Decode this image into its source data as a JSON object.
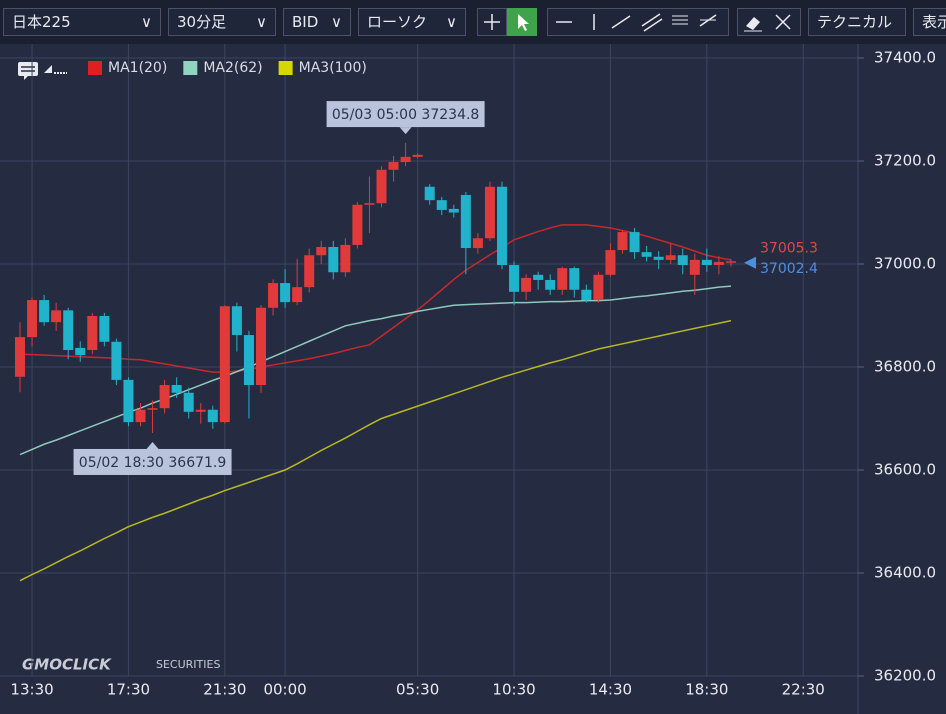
{
  "toolbar": {
    "symbol": "日本225",
    "timeframe": "30分足",
    "side": "BID",
    "chart_style": "ローソク",
    "technical": "テクニカル",
    "display": "表示"
  },
  "watermark": {
    "brand": "GMOCLICK",
    "sub": "SECURITIES"
  },
  "chart_data": {
    "type": "candlestick",
    "up_color": "#e03a3a",
    "down_color": "#22b3cc",
    "categories": [
      null,
      "13:30",
      null,
      null,
      null,
      null,
      null,
      null,
      null,
      "17:30",
      null,
      null,
      null,
      null,
      null,
      null,
      null,
      "21:30",
      null,
      null,
      null,
      null,
      "00:00",
      null,
      null,
      null,
      null,
      null,
      null,
      null,
      null,
      null,
      null,
      "05:30",
      null,
      null,
      null,
      null,
      null,
      null,
      null,
      "10:30",
      null,
      null,
      null,
      null,
      null,
      null,
      null,
      "14:30",
      null,
      null,
      null,
      null,
      null,
      null,
      null,
      "18:30",
      null,
      null,
      null,
      null,
      null,
      null,
      null,
      "22:30"
    ],
    "open": [
      36781,
      36858,
      36930,
      36887,
      36910,
      36837,
      36833,
      36899,
      36849,
      36775,
      36693,
      36717,
      36720,
      36765,
      36750,
      36713,
      36717,
      36693,
      36918,
      36862,
      36765,
      36915,
      36963,
      36926,
      36955,
      37017,
      37033,
      36984,
      37037,
      37115,
      37118,
      37183,
      37198,
      37208,
      37150,
      37124,
      37107,
      37134,
      37031,
      37050,
      37150,
      36998,
      36946,
      36979,
      36969,
      36950,
      36992,
      36950,
      36930,
      36979,
      37027,
      37062,
      37023,
      37014,
      37008,
      37017,
      36979,
      37008,
      36998,
      37004,
      null,
      null,
      null,
      null,
      null,
      null
    ],
    "high": [
      36887,
      36935,
      36940,
      36925,
      36915,
      36850,
      36905,
      36905,
      36855,
      36780,
      36730,
      36735,
      36775,
      36780,
      36760,
      36730,
      36725,
      36920,
      36925,
      36870,
      36920,
      36970,
      36990,
      37010,
      37030,
      37045,
      37045,
      37050,
      37120,
      37170,
      37190,
      37210,
      37234.8,
      37215,
      37155,
      37130,
      37115,
      37140,
      37060,
      37160,
      37160,
      37005,
      36980,
      36985,
      36980,
      36995,
      36995,
      36960,
      36985,
      37040,
      37065,
      37070,
      37035,
      37025,
      37040,
      37030,
      37020,
      37030,
      37015,
      37010,
      null,
      null,
      null,
      null,
      null,
      null
    ],
    "low": [
      36751,
      36840,
      36880,
      36870,
      36815,
      36810,
      36825,
      36840,
      36765,
      36685,
      36685,
      36671.9,
      36710,
      36740,
      36700,
      36690,
      36680,
      36690,
      36830,
      36700,
      36750,
      36900,
      36915,
      36920,
      36945,
      37000,
      36970,
      36975,
      37030,
      37060,
      37110,
      37160,
      37190,
      37205,
      37115,
      37095,
      37090,
      36980,
      37020,
      37045,
      36990,
      36920,
      36930,
      36950,
      36940,
      36940,
      36935,
      36925,
      36925,
      36975,
      37020,
      37010,
      37005,
      36990,
      37000,
      36980,
      36940,
      36985,
      36980,
      36995,
      null,
      null,
      null,
      null,
      null,
      null
    ],
    "close": [
      36858,
      36930,
      36887,
      36910,
      36833,
      36823,
      36899,
      36849,
      36775,
      36693,
      36717,
      36720,
      36765,
      36750,
      36713,
      36717,
      36693,
      36918,
      36862,
      36765,
      36915,
      36963,
      36926,
      36955,
      37017,
      37033,
      36984,
      37037,
      37115,
      37118,
      37183,
      37198,
      37208,
      37212,
      37124,
      37105,
      37100,
      37031,
      37050,
      37150,
      36998,
      36946,
      36973,
      36969,
      36950,
      36992,
      36950,
      36930,
      36979,
      37027,
      37062,
      37023,
      37014,
      37008,
      37017,
      36998,
      37008,
      36998,
      37004,
      37005.3,
      null,
      null,
      null,
      null,
      null,
      null
    ],
    "series": [
      {
        "name": "MA1(20)",
        "color": "#c8282a",
        "legend_color": "#e02020",
        "values": [
          36825,
          36824,
          36823,
          36822,
          36821,
          36820,
          36819,
          36818,
          36817,
          36815,
          36814,
          36810,
          36806,
          36802,
          36798,
          36794,
          36790,
          36790,
          36792,
          36795,
          36800,
          36804,
          36808,
          36812,
          36816,
          36821,
          36826,
          36832,
          36838,
          36843,
          36860,
          36877,
          36894,
          36911,
          36930,
          36950,
          36970,
          36988,
          37003,
          37018,
          37032,
          37047,
          37055,
          37063,
          37070,
          37076,
          37076,
          37076,
          37073,
          37070,
          37065,
          37060,
          37054,
          37047,
          37040,
          37033,
          37025,
          37017,
          37012,
          37008,
          null,
          null,
          null,
          null,
          null,
          null
        ]
      },
      {
        "name": "MA2(62)",
        "color": "#8fc8bb",
        "legend_color": "#8fd3c0",
        "values": [
          36630,
          36640,
          36650,
          36658,
          36667,
          36676,
          36685,
          36694,
          36703,
          36712,
          36720,
          36730,
          36738,
          36747,
          36756,
          36765,
          36774,
          36782,
          36791,
          36800,
          36810,
          36820,
          36830,
          36840,
          36850,
          36860,
          36870,
          36880,
          36885,
          36890,
          36894,
          36899,
          36903,
          36908,
          36912,
          36916,
          36920,
          36921,
          36922,
          36923,
          36924,
          36925,
          36925,
          36926,
          36927,
          36927,
          36928,
          36929,
          36929,
          36930,
          36933,
          36936,
          36938,
          36941,
          36944,
          36947,
          36949,
          36952,
          36955,
          36957,
          null,
          null,
          null,
          null,
          null,
          null
        ]
      },
      {
        "name": "MA3(100)",
        "color": "#b8b820",
        "legend_color": "#d6d600",
        "values": [
          36385,
          36397,
          36408,
          36420,
          36432,
          36443,
          36455,
          36467,
          36478,
          36490,
          36499,
          36508,
          36516,
          36525,
          36534,
          36543,
          36551,
          36560,
          36568,
          36576,
          36584,
          36592,
          36600,
          36612,
          36625,
          36638,
          36650,
          36662,
          36675,
          36688,
          36700,
          36708,
          36716,
          36724,
          36732,
          36740,
          36748,
          36756,
          36764,
          36772,
          36780,
          36787,
          36794,
          36801,
          36808,
          36814,
          36821,
          36828,
          36835,
          36840,
          36845,
          36850,
          36855,
          36860,
          36865,
          36870,
          36875,
          36880,
          36885,
          36890,
          null,
          null,
          null,
          null,
          null,
          null
        ]
      }
    ],
    "annotations": [
      {
        "label": "05/03 05:00 37234.8",
        "value": 37234.8,
        "kind": "high"
      },
      {
        "label": "05/02 18:30 36671.9",
        "value": 36671.9,
        "kind": "low"
      }
    ],
    "price_labels": [
      {
        "value": 37005.3,
        "color": "#e04848"
      },
      {
        "value": 37002.4,
        "color": "#4a90e2"
      }
    ],
    "ylim": [
      36200,
      37400
    ],
    "yticks": [
      {
        "value": 36200,
        "label": "36200.0"
      },
      {
        "value": 36400,
        "label": "36400.0"
      },
      {
        "value": 36600,
        "label": "36600.0"
      },
      {
        "value": 36800,
        "label": "36800.0"
      },
      {
        "value": 37000,
        "label": "37000.0"
      },
      {
        "value": 37200,
        "label": "37200.0"
      },
      {
        "value": 37400,
        "label": "37400.0"
      }
    ],
    "grid": true
  }
}
